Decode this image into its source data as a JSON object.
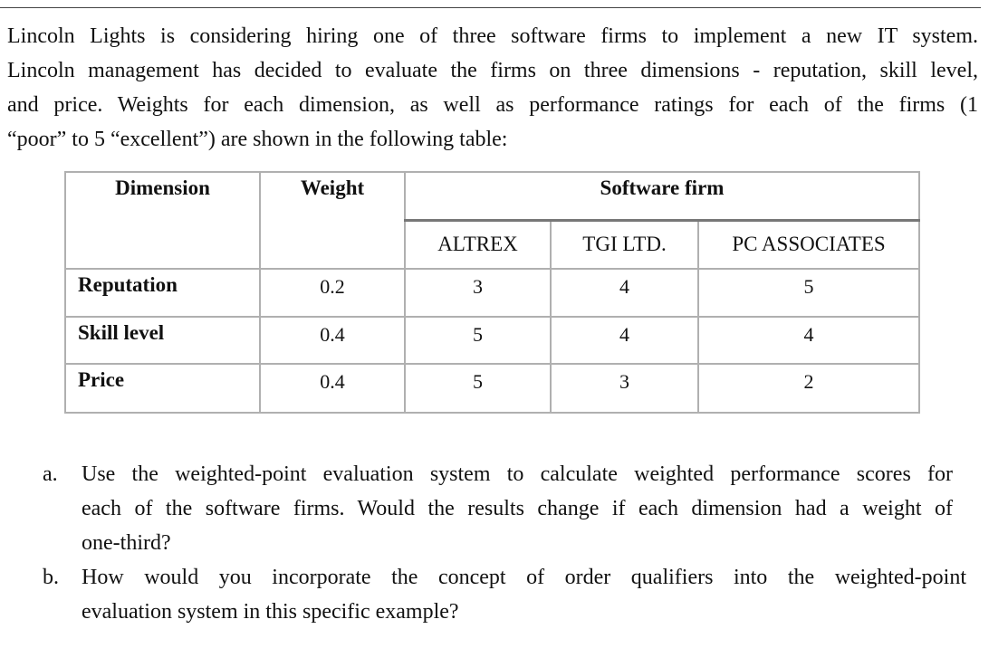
{
  "intro": {
    "lines": [
      "Lincoln Lights is considering hiring one of three software firms to implement a new IT system.",
      "Lincoln management has decided to evaluate the firms on three dimensions - reputation, skill level,",
      "and price. Weights for each dimension, as well as performance ratings for each of the firms (1",
      "“poor” to 5 “excellent”) are shown in the following table:"
    ]
  },
  "table": {
    "headers": {
      "dimension": "Dimension",
      "weight": "Weight",
      "group": "Software firm",
      "firms": [
        "ALTREX",
        "TGI LTD.",
        "PC ASSOCIATES"
      ]
    },
    "rows": [
      [
        "Reputation",
        0.2,
        3,
        4,
        5
      ],
      [
        "Skill level",
        0.4,
        5,
        4,
        4
      ],
      [
        "Price",
        0.4,
        5,
        3,
        2
      ]
    ]
  },
  "questions": [
    {
      "label": "a.",
      "lines": [
        "Use the weighted-point evaluation system to calculate weighted performance scores for",
        "each of the software firms. Would the results change if each dimension had a weight of",
        "one-third?"
      ]
    },
    {
      "label": "b.",
      "lines": [
        "How would you incorporate the concept of order qualifiers into the weighted-point",
        "evaluation system in this specific example?"
      ]
    }
  ]
}
